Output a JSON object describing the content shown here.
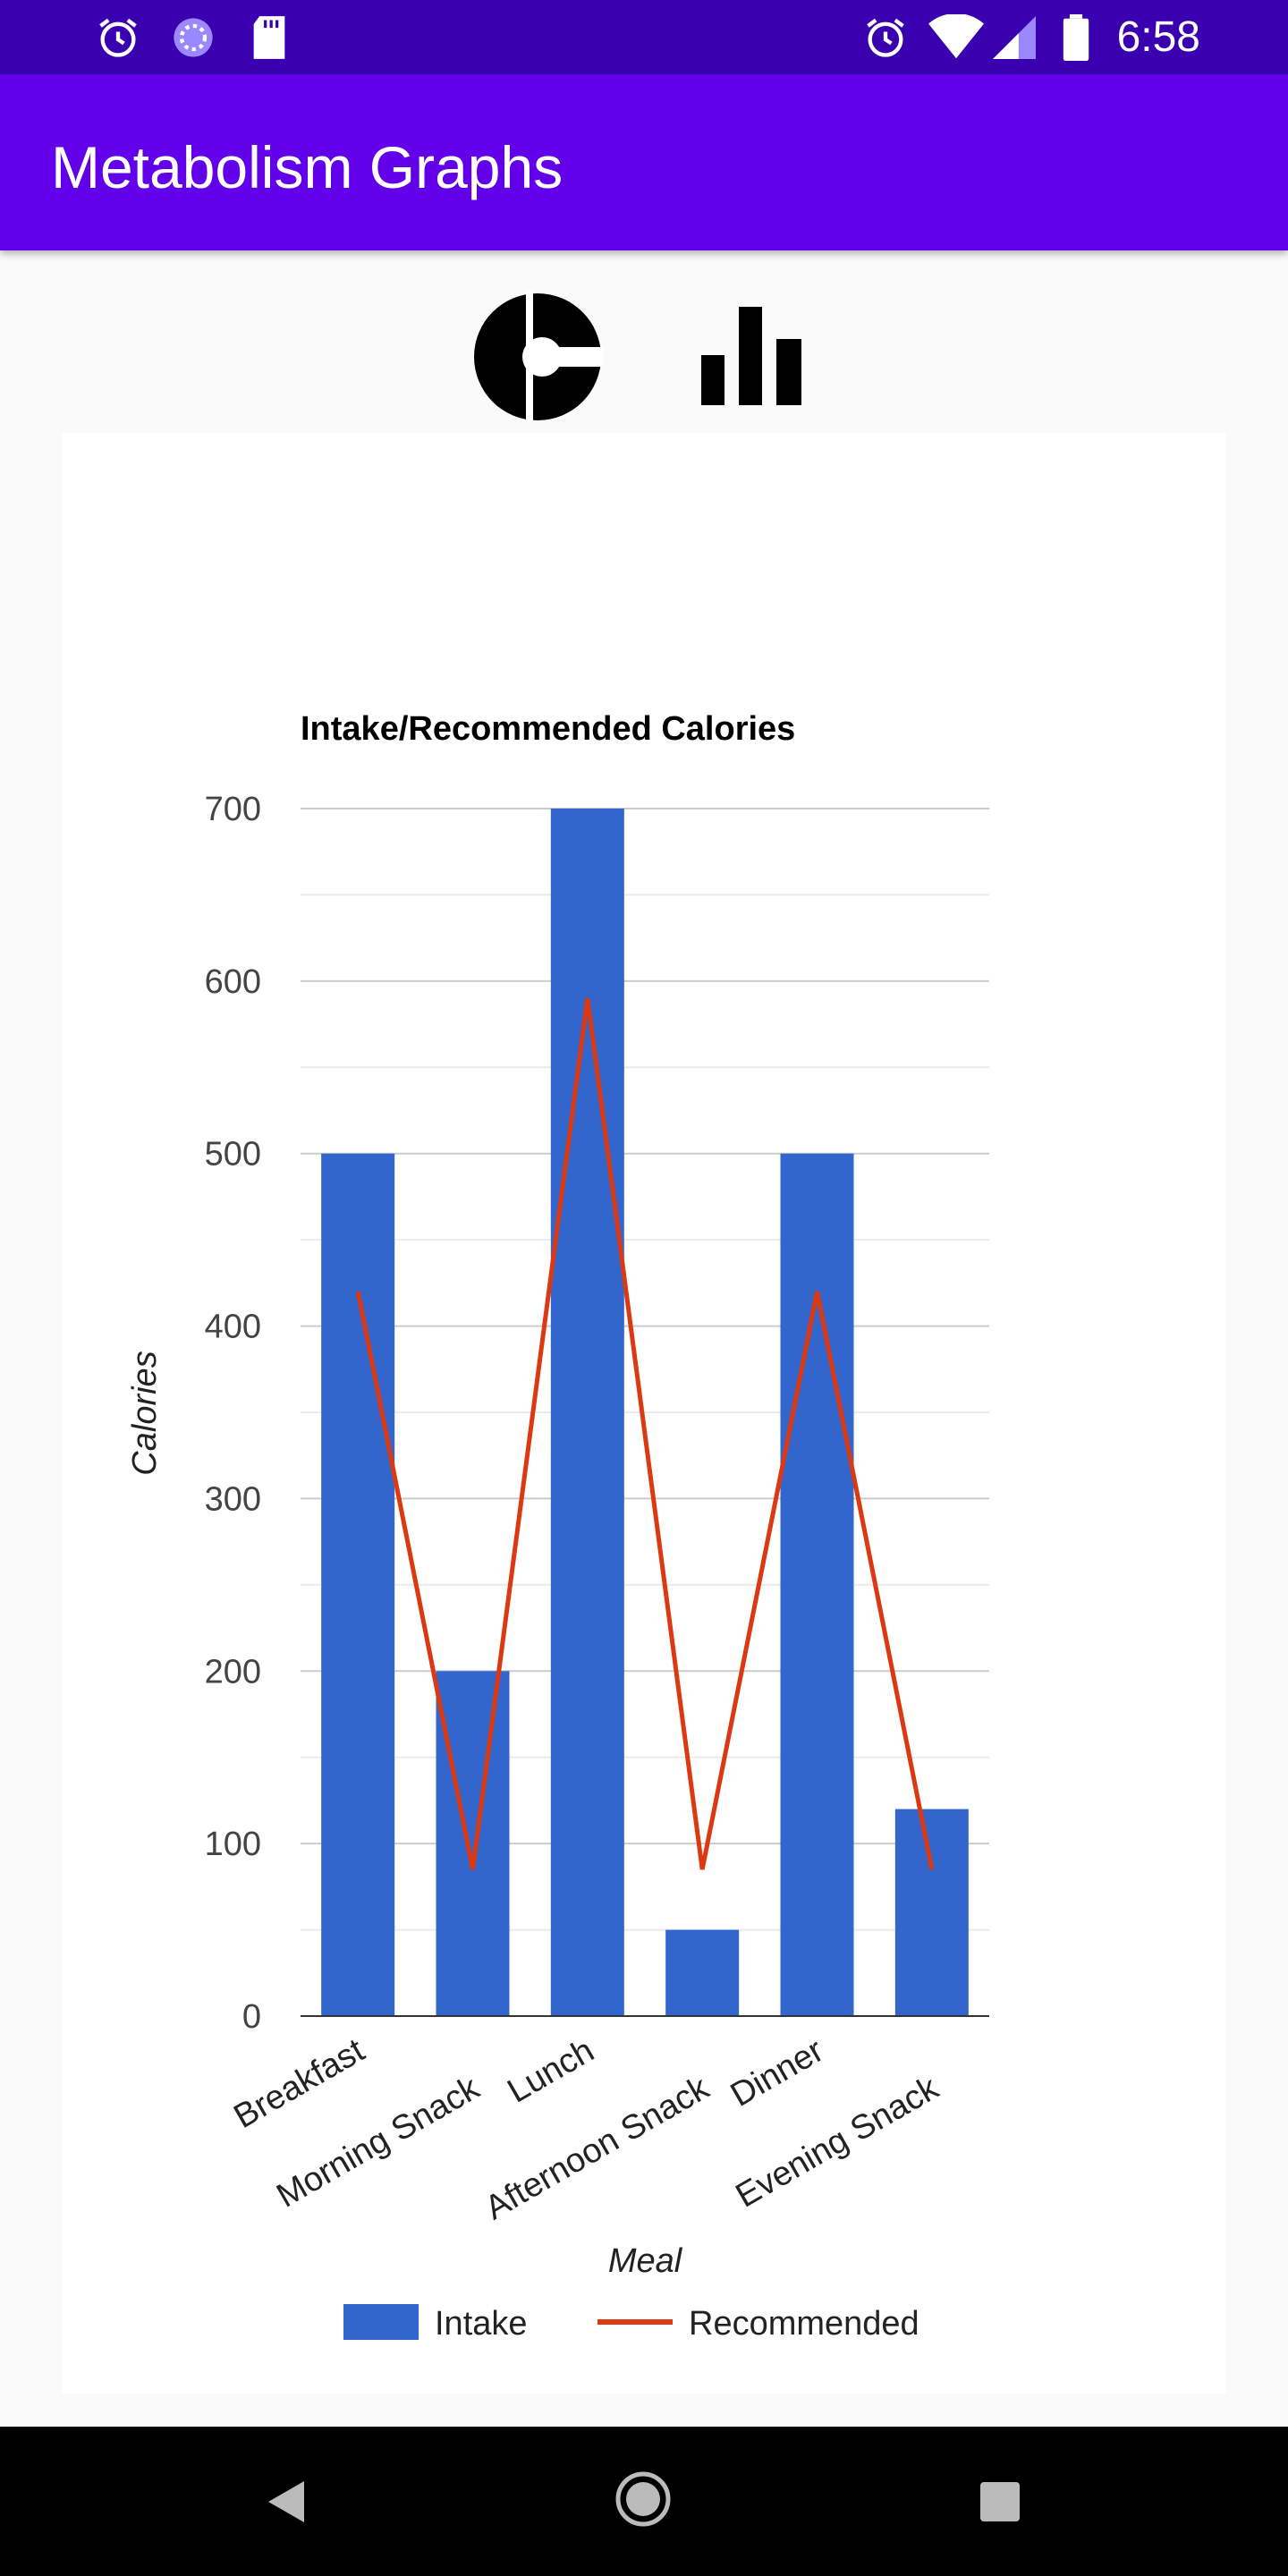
{
  "status_bar": {
    "time": "6:58",
    "left_icons": [
      "alarm-icon",
      "sync-icon",
      "sd-card-icon"
    ],
    "right_icons": [
      "alarm-icon",
      "wifi-icon",
      "cell-signal-icon",
      "battery-icon"
    ]
  },
  "app_bar": {
    "title": "Metabolism Graphs"
  },
  "chart_toggle": {
    "items": [
      "pie-chart-icon",
      "bar-chart-icon"
    ]
  },
  "colors": {
    "status_bar": "#3a00b0",
    "app_bar": "#6200ea",
    "intake": "#3366cc",
    "recommended": "#dc3912"
  },
  "chart_data": {
    "type": "bar",
    "title": "Intake/Recommended Calories",
    "xlabel": "Meal",
    "ylabel": "Calories",
    "categories": [
      "Breakfast",
      "Morning Snack",
      "Lunch",
      "Afternoon Snack",
      "Dinner",
      "Evening Snack"
    ],
    "ylim": [
      0,
      700
    ],
    "yticks": [
      "0",
      "100",
      "200",
      "300",
      "400",
      "500",
      "600",
      "700"
    ],
    "series": [
      {
        "name": "Intake",
        "type": "bar",
        "color": "#3366cc",
        "values": [
          500,
          200,
          700,
          50,
          500,
          120
        ]
      },
      {
        "name": "Recommended",
        "type": "line",
        "color": "#dc3912",
        "values": [
          420,
          85,
          590,
          85,
          420,
          85
        ]
      }
    ],
    "grid": true,
    "legend_position": "bottom"
  },
  "nav_bar": {
    "items": [
      "back-icon",
      "home-icon",
      "recents-icon"
    ]
  }
}
